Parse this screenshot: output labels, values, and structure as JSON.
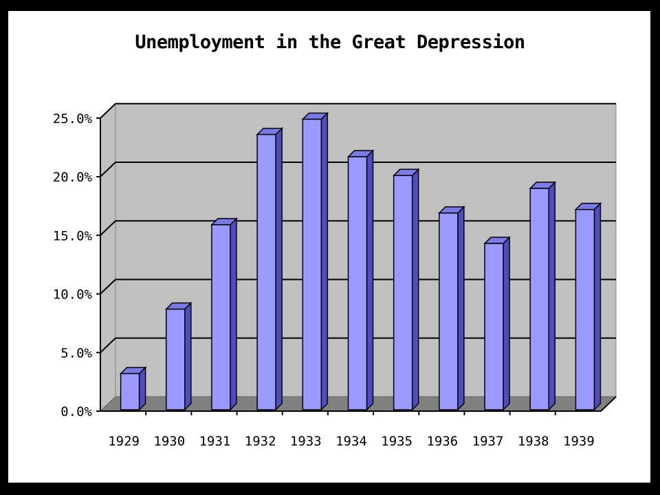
{
  "chart_data": {
    "type": "bar",
    "title": "Unemployment in the Great Depression",
    "categories": [
      "1929",
      "1930",
      "1931",
      "1932",
      "1933",
      "1934",
      "1935",
      "1936",
      "1937",
      "1938",
      "1939"
    ],
    "values": [
      3.2,
      8.7,
      15.9,
      23.6,
      24.9,
      21.7,
      20.1,
      16.9,
      14.3,
      19.0,
      17.2
    ],
    "value_unit": "%",
    "ylim": [
      0,
      25
    ],
    "yticks": [
      "0.0%",
      "5.0%",
      "10.0%",
      "15.0%",
      "20.0%",
      "25.0%"
    ],
    "grid": true,
    "style": "3d-column",
    "colors": {
      "bar_front": "#9999ff",
      "bar_side": "#4d4dc0",
      "bar_top": "#7a7ae6",
      "wall": "#c0c0c0",
      "floor": "#808080",
      "gridline": "#000000"
    }
  }
}
